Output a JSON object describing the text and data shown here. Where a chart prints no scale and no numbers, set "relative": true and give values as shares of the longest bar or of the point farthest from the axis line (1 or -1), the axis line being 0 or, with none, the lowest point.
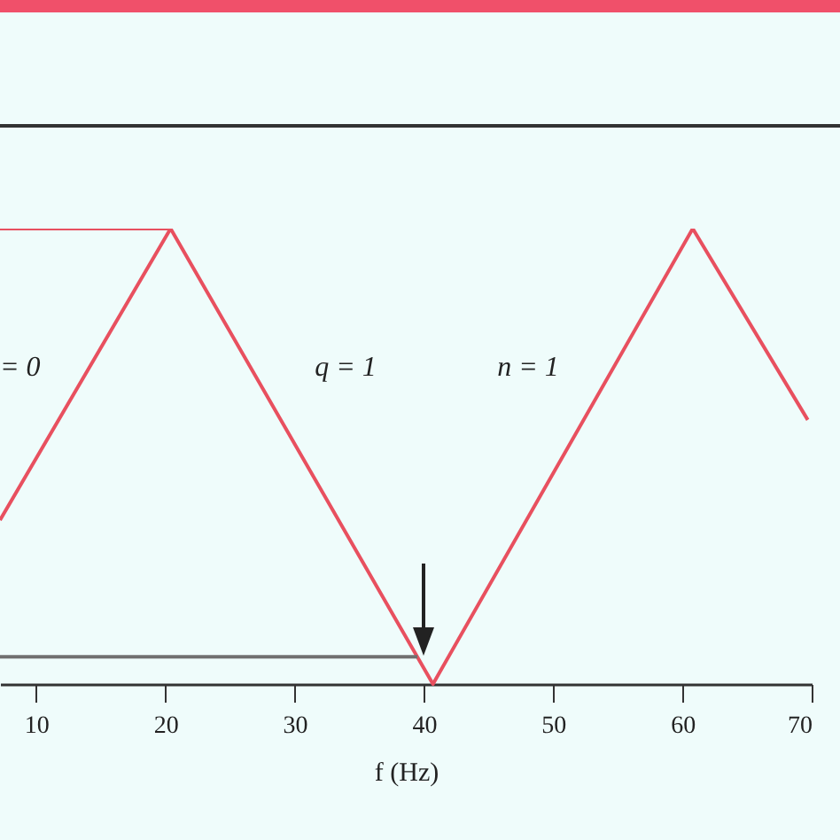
{
  "chart_data": {
    "type": "line",
    "relative": true,
    "xlabel": "f (Hz)",
    "xlim": [
      7.2,
      70
    ],
    "xticks": [
      10,
      20,
      30,
      40,
      50,
      60,
      70
    ],
    "grid": false,
    "line_style": "solid",
    "marker": "none",
    "series": [
      {
        "color": "#e8505f",
        "x": [
          7.2,
          20.4,
          40.7,
          60.8,
          69.7
        ],
        "values": [
          0.36,
          1,
          0,
          1,
          0.58
        ]
      },
      {
        "color": "#e8505f",
        "x": [
          7.2,
          20.4
        ],
        "values": [
          1,
          1
        ]
      },
      {
        "color": "#707070",
        "x": [
          7.2,
          39.5
        ],
        "values": [
          0.06,
          0.06
        ]
      }
    ],
    "annotations": [
      "= 0",
      "q = 1",
      "n = 1"
    ]
  }
}
